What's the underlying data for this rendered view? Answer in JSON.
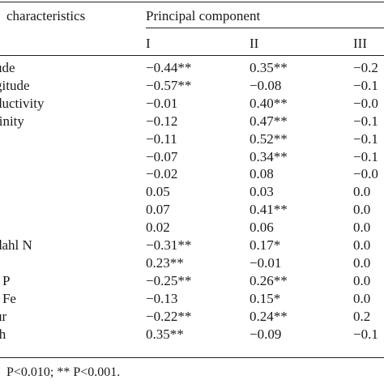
{
  "header": {
    "col0": "characteristics",
    "group": "Principal component",
    "pcs": [
      "I",
      "II",
      "III"
    ]
  },
  "rows": [
    {
      "label": "ude",
      "v": [
        "−0.44**",
        "0.35**",
        "−0.2"
      ]
    },
    {
      "label": "gitude",
      "v": [
        "−0.57**",
        "−0.08",
        "−0.1"
      ]
    },
    {
      "label": "ductivity",
      "v": [
        "−0.01",
        "0.40**",
        "−0.0"
      ]
    },
    {
      "label": "linity",
      "v": [
        "−0.12",
        "0.47**",
        "−0.1"
      ]
    },
    {
      "label": "",
      "v": [
        "−0.11",
        "0.52**",
        "−0.1"
      ]
    },
    {
      "label": "",
      "v": [
        "−0.07",
        "0.34**",
        "−0.1"
      ]
    },
    {
      "label": "",
      "v": [
        "−0.02",
        "0.08",
        "−0.0"
      ]
    },
    {
      "label": "",
      "v": [
        "0.05",
        "0.03",
        "0.0"
      ]
    },
    {
      "label": "",
      "v": [
        "0.07",
        "0.41**",
        "0.0"
      ]
    },
    {
      "label": "",
      "v": [
        "0.02",
        "0.06",
        "0.0"
      ]
    },
    {
      "label": "dahl N",
      "v": [
        "−0.31**",
        "0.17*",
        "0.0"
      ]
    },
    {
      "label": "",
      "v": [
        "0.23**",
        "−0.01",
        "0.0"
      ]
    },
    {
      "label": "l P",
      "v": [
        "−0.25**",
        "0.26**",
        "0.0"
      ]
    },
    {
      "label": "l Fe",
      "v": [
        "−0.13",
        "0.15*",
        "0.0"
      ]
    },
    {
      "label": "ur",
      "v": [
        "−0.22**",
        "0.24**",
        "0.2"
      ]
    },
    {
      "label": "th",
      "v": [
        "0.35**",
        "−0.09",
        "−0.1"
      ]
    }
  ],
  "footnote": "P<0.010; ** P<0.001."
}
